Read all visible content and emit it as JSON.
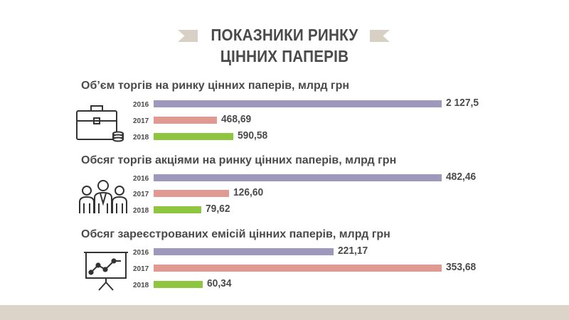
{
  "header": {
    "title_line1": "ПОКАЗНИКИ РИНКУ",
    "title_line2": "ЦІННИХ ПАПЕРІВ"
  },
  "colors": {
    "2016": "#9f98bd",
    "2017": "#e19a92",
    "2018": "#8ec63f",
    "ribbon": "#d9d0c5",
    "footer": "#ddd4c9",
    "text": "#4a4a4a"
  },
  "icons": [
    "briefcase-coins-icon",
    "people-group-icon",
    "presentation-chart-icon"
  ],
  "chart_data": [
    {
      "type": "bar",
      "orientation": "horizontal",
      "title": "Об’єм торгів на ринку цінних паперів, млрд грн",
      "categories": [
        "2016",
        "2017",
        "2018"
      ],
      "values": [
        2127.5,
        468.69,
        590.58
      ],
      "labels": [
        "2 127,5",
        "468,69",
        "590,58"
      ]
    },
    {
      "type": "bar",
      "orientation": "horizontal",
      "title": "Обсяг торгів акціями на ринку цінних паперів, млрд грн",
      "categories": [
        "2016",
        "2017",
        "2018"
      ],
      "values": [
        482.46,
        126.6,
        79.62
      ],
      "labels": [
        "482,46",
        "126,60",
        "79,62"
      ]
    },
    {
      "type": "bar",
      "orientation": "horizontal",
      "title": "Обсяг зареєстрованих емісій цінних паперів, млрд грн",
      "categories": [
        "2016",
        "2017",
        "2018"
      ],
      "values": [
        221.17,
        353.68,
        60.34
      ],
      "labels": [
        "221,17",
        "353,68",
        "60,34"
      ]
    }
  ]
}
